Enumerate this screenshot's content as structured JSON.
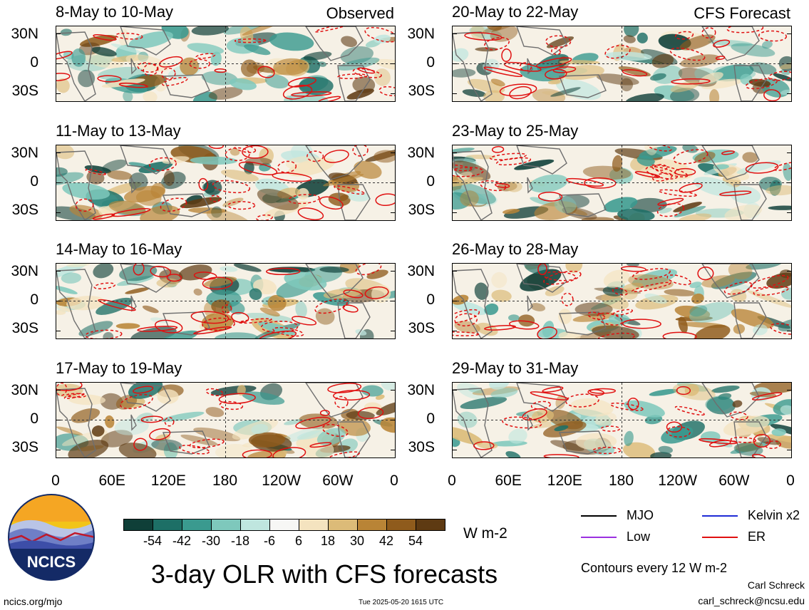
{
  "panels_observed": [
    {
      "title": "8-May to 10-May",
      "tag": "Observed"
    },
    {
      "title": "11-May to 13-May",
      "tag": ""
    },
    {
      "title": "14-May to 16-May",
      "tag": ""
    },
    {
      "title": "17-May to 19-May",
      "tag": ""
    }
  ],
  "panels_forecast": [
    {
      "title": "20-May to 22-May",
      "tag": "CFS Forecast"
    },
    {
      "title": "23-May to 25-May",
      "tag": ""
    },
    {
      "title": "26-May to 28-May",
      "tag": ""
    },
    {
      "title": "29-May to 31-May",
      "tag": ""
    }
  ],
  "lat_labels": [
    "30N",
    "0",
    "30S"
  ],
  "lon_labels": [
    "0",
    "60E",
    "120E",
    "180",
    "120W",
    "60W",
    "0"
  ],
  "colorbar": {
    "ticks": [
      "-54",
      "-42",
      "-30",
      "-18",
      "-6",
      "6",
      "18",
      "30",
      "42",
      "54"
    ],
    "colors": [
      "#0f3f38",
      "#1d6f66",
      "#3a9a8f",
      "#7ec8bc",
      "#bfe6df",
      "#f7f7f5",
      "#f4e3bf",
      "#dcbb78",
      "#b98436",
      "#8f5b1c",
      "#5e3a12"
    ],
    "units": "W m-2"
  },
  "legend": {
    "items": [
      {
        "label": "MJO",
        "color": "#000000"
      },
      {
        "label": "Kelvin x2",
        "color": "#1f2bd6"
      },
      {
        "label": "Low",
        "color": "#9b30e0"
      },
      {
        "label": "ER",
        "color": "#e01010"
      }
    ],
    "note": "Contours every 12 W m-2"
  },
  "main_title": "3-day OLR with CFS forecasts",
  "logo_text": "NCICS",
  "footer": {
    "url": "ncics.org/mjo",
    "timestamp": "Tue 2025-05-20 1615 UTC",
    "author": "Carl Schreck",
    "email": "carl_schreck@ncsu.edu"
  }
}
